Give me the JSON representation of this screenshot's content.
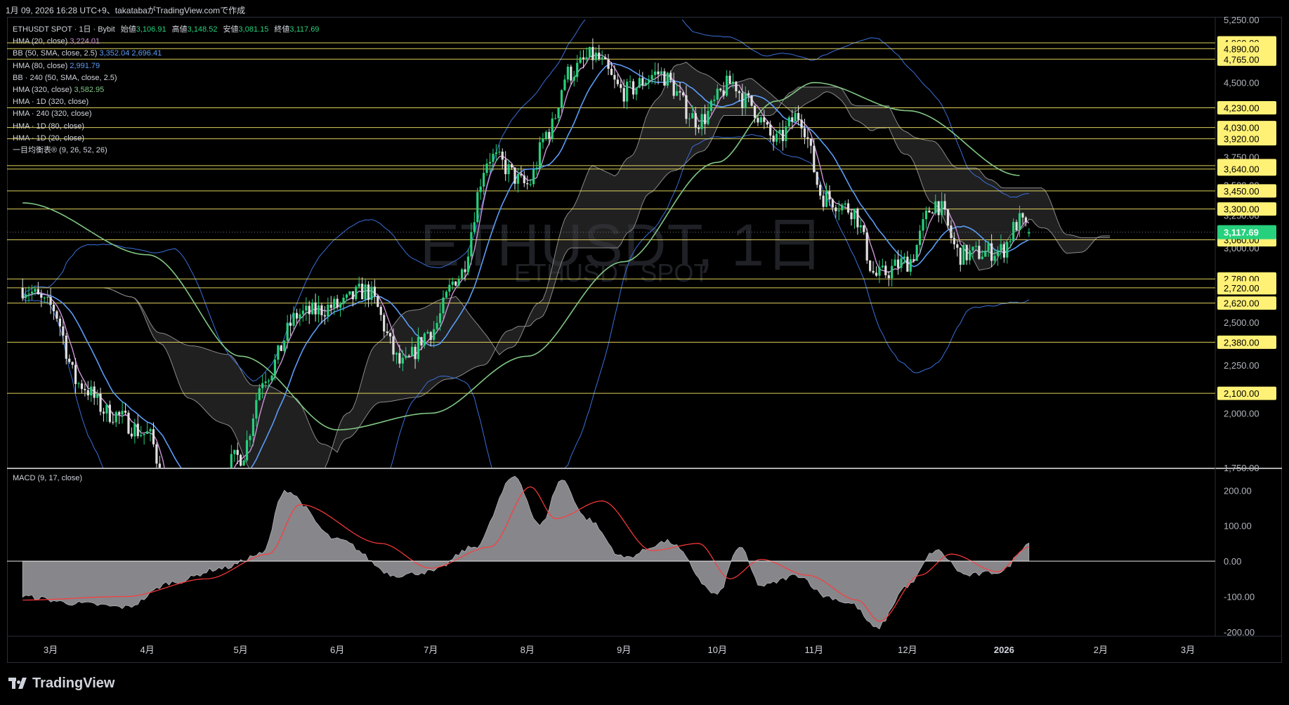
{
  "header": {
    "caption": "1月 09, 2026 16:28 UTC+9、takatabaがTradingView.comで作成"
  },
  "legend": {
    "symbol_line": "ETHUSDT SPOT · 1日 · Bybit",
    "ohlc": {
      "open_label": "始値",
      "open": "3,106.91",
      "high_label": "高値",
      "high": "3,148.52",
      "low_label": "安値",
      "low": "3,081.15",
      "close_label": "終値",
      "close": "3,117.69"
    },
    "indicators": [
      {
        "label": "HMA (20, close)",
        "value": "3,224.01",
        "value2": "",
        "color": "#ce93d8"
      },
      {
        "label": "BB (50, SMA, close, 2.5)",
        "value": "3,352.04",
        "value2": "2,696.41",
        "color": "#5b9cf6"
      },
      {
        "label": "HMA (80, close)",
        "value": "2,991.79",
        "value2": "",
        "color": "#5b9cf6"
      },
      {
        "label": "BB · 240 (50, SMA, close, 2.5)",
        "value": "",
        "value2": "",
        "color": ""
      },
      {
        "label": "HMA (320, close)",
        "value": "3,582.95",
        "value2": "",
        "color": "#81c784"
      },
      {
        "label": "HMA · 1D (320, close)",
        "value": "",
        "value2": "",
        "color": ""
      },
      {
        "label": "HMA · 240 (320, close)",
        "value": "",
        "value2": "",
        "color": ""
      },
      {
        "label": "HMA · 1D (80, close)",
        "value": "",
        "value2": "",
        "color": ""
      },
      {
        "label": "HMA · 1D (20, close)",
        "value": "",
        "value2": "",
        "color": ""
      },
      {
        "label": "一目均衡表® (9, 26, 52, 26)",
        "value": "",
        "value2": "",
        "color": ""
      }
    ]
  },
  "watermark": {
    "main": "ETHUSDT, 1日",
    "sub": "ETHUSDT SPOT"
  },
  "macd": {
    "label": "MACD (9, 17, close)"
  },
  "footer": {
    "brand": "TradingView"
  },
  "colors": {
    "background": "#000000",
    "up": "#26d07c",
    "down": "#e0e0e0",
    "level_line": "#f5e663",
    "label_yellow": "#fff176",
    "last_price": "#26d07c",
    "hma20": "#ce93d8",
    "hma80": "#5b9cf6",
    "hma320": "#81c784",
    "bb": "#3a6fd8",
    "macd_signal": "#ff3b3b"
  },
  "chart_data": [
    {
      "type": "line",
      "title": "",
      "y_scale": "log",
      "ylim": [
        1750,
        5250
      ],
      "y_ticks": [
        1750,
        2000,
        2250,
        2500,
        2750,
        3000,
        3250,
        3500,
        3750,
        4000,
        4250,
        4500,
        4750,
        5000,
        5250
      ],
      "y_tick_labels": [
        "1,750.00",
        "2,000.00",
        "2,250.00",
        "2,500.00",
        "2,750.00",
        "3,000.00",
        "3,250.00",
        "3,500.00",
        "3,750.00",
        "4,000.00",
        "4,250.00",
        "4,500.00",
        "4,750.00",
        "5,000.00",
        "5,250.00"
      ],
      "x_tick_labels": [
        "3月",
        "4月",
        "5月",
        "6月",
        "7月",
        "8月",
        "9月",
        "10月",
        "11月",
        "12月",
        "2026",
        "2月",
        "3月"
      ],
      "levels": [
        4960,
        4890,
        4765,
        4230,
        4030,
        3920,
        3670,
        3640,
        3450,
        3300,
        3060,
        2780,
        2720,
        2620,
        2380,
        2100
      ],
      "level_labels": [
        "4,960.00",
        "4,890.00",
        "4,765.00",
        "4,230.00",
        "4,030.00",
        "3,920.00",
        "3,670.00",
        "3,640.00",
        "3,450.00",
        "3,300.00",
        "3,060.00",
        "2,780.00",
        "2,720.00",
        "2,620.00",
        "2,380.00",
        "2,100.00"
      ],
      "last_price": 3117.69,
      "last_price_label": "3,117.69",
      "close_keypoints": {
        "dates": [
          "2025-02-20",
          "2025-03-01",
          "2025-03-10",
          "2025-03-20",
          "2025-04-01",
          "2025-04-09",
          "2025-04-20",
          "2025-05-01",
          "2025-05-09",
          "2025-05-20",
          "2025-06-01",
          "2025-06-10",
          "2025-06-22",
          "2025-07-01",
          "2025-07-10",
          "2025-07-20",
          "2025-08-01",
          "2025-08-08",
          "2025-08-14",
          "2025-08-22",
          "2025-09-01",
          "2025-09-12",
          "2025-09-25",
          "2025-10-06",
          "2025-10-10",
          "2025-10-20",
          "2025-10-27",
          "2025-11-04",
          "2025-11-13",
          "2025-11-21",
          "2025-12-01",
          "2025-12-10",
          "2025-12-18",
          "2025-12-31",
          "2026-01-06",
          "2026-01-09"
        ],
        "values": [
          2720,
          2600,
          2150,
          2000,
          1900,
          1560,
          1650,
          1800,
          2200,
          2550,
          2600,
          2700,
          2250,
          2450,
          2800,
          3750,
          3500,
          4000,
          4600,
          4800,
          4400,
          4600,
          4100,
          4500,
          4300,
          3900,
          4150,
          3400,
          3300,
          2800,
          2900,
          3350,
          2950,
          2980,
          3200,
          3117.69
        ]
      },
      "hma320_keypoints": {
        "dates": [
          "2025-02-20",
          "2025-04-01",
          "2025-05-01",
          "2025-06-01",
          "2025-07-01",
          "2025-08-01",
          "2025-09-01",
          "2025-10-01",
          "2025-10-20",
          "2025-11-01",
          "2025-12-01",
          "2026-01-06"
        ],
        "values": [
          3350,
          2950,
          2300,
          1920,
          2000,
          2300,
          2900,
          3700,
          4300,
          4500,
          4200,
          3582.95
        ]
      }
    },
    {
      "type": "area",
      "title": "MACD (9, 17, close)",
      "ylim": [
        -210,
        260
      ],
      "y_ticks": [
        200,
        100,
        0,
        -100,
        -200
      ],
      "y_tick_labels": [
        "200.00",
        "100.00",
        "0.00",
        "-100.00",
        "-200.00"
      ],
      "histogram_keypoints": {
        "dates": [
          "2025-02-20",
          "2025-03-10",
          "2025-03-25",
          "2025-04-09",
          "2025-04-25",
          "2025-05-08",
          "2025-05-15",
          "2025-06-01",
          "2025-06-20",
          "2025-07-01",
          "2025-07-15",
          "2025-07-28",
          "2025-08-05",
          "2025-08-12",
          "2025-08-20",
          "2025-09-01",
          "2025-09-15",
          "2025-10-01",
          "2025-10-08",
          "2025-10-15",
          "2025-10-27",
          "2025-11-05",
          "2025-11-13",
          "2025-11-21",
          "2025-12-01",
          "2025-12-10",
          "2025-12-20",
          "2025-12-31",
          "2026-01-09"
        ],
        "values": [
          -100,
          -120,
          -130,
          -60,
          -20,
          20,
          200,
          60,
          -40,
          -30,
          40,
          240,
          100,
          230,
          120,
          10,
          55,
          -95,
          40,
          -70,
          -40,
          -100,
          -120,
          -190,
          -70,
          30,
          -40,
          -30,
          50
        ]
      },
      "signal_keypoints": {
        "dates": [
          "2025-02-20",
          "2025-03-25",
          "2025-04-20",
          "2025-05-10",
          "2025-05-20",
          "2025-06-15",
          "2025-07-01",
          "2025-07-20",
          "2025-08-02",
          "2025-08-10",
          "2025-08-25",
          "2025-09-10",
          "2025-09-25",
          "2025-10-05",
          "2025-10-15",
          "2025-10-30",
          "2025-11-15",
          "2025-11-22",
          "2025-12-05",
          "2025-12-15",
          "2025-12-30",
          "2026-01-09"
        ],
        "values": [
          -110,
          -100,
          -50,
          20,
          160,
          50,
          -20,
          40,
          210,
          120,
          170,
          30,
          50,
          -50,
          5,
          -40,
          -110,
          -170,
          -40,
          20,
          -30,
          40
        ]
      }
    }
  ]
}
